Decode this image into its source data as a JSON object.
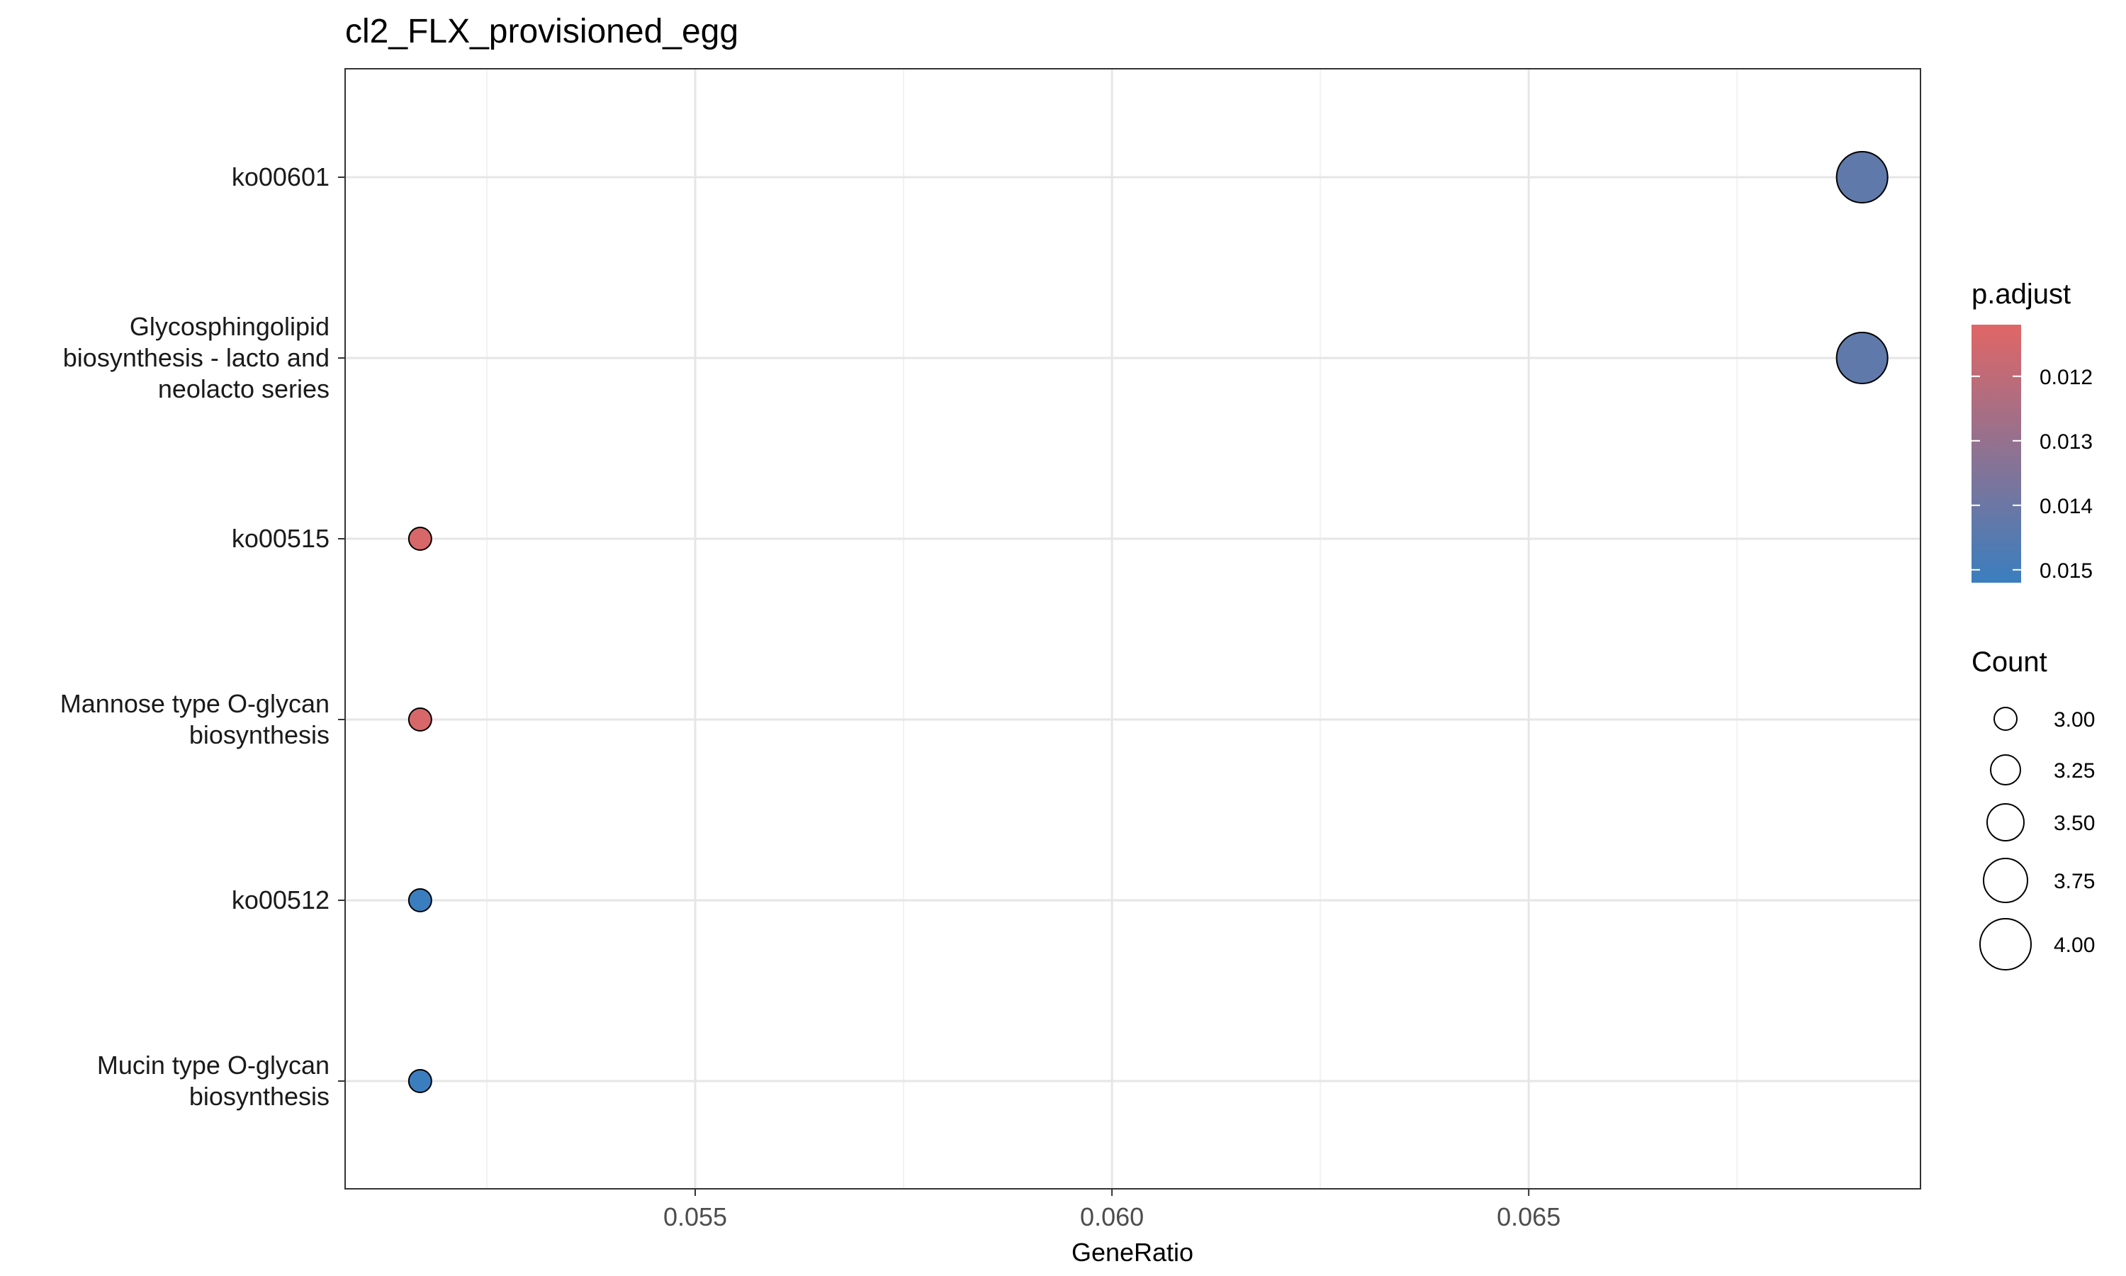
{
  "chart_data": {
    "type": "scatter",
    "title": "cl2_FLX_provisioned_egg",
    "xlabel": "GeneRatio",
    "ylabel": "",
    "xlim": [
      0.0508,
      0.0697
    ],
    "x_ticks": [
      0.055,
      0.06,
      0.065
    ],
    "x_tick_labels": [
      "0.055",
      "0.060",
      "0.065"
    ],
    "categories": [
      "ko00601",
      "Glycosphingolipid biosynthesis - lacto and neolacto series",
      "ko00515",
      "Mannose type O-glycan biosynthesis",
      "ko00512",
      "Mucin type O-glycan biosynthesis"
    ],
    "category_lines": [
      [
        "ko00601"
      ],
      [
        "Glycosphingolipid",
        "biosynthesis - lacto and",
        "neolacto series"
      ],
      [
        "ko00515"
      ],
      [
        "Mannose type O-glycan",
        "biosynthesis"
      ],
      [
        "ko00512"
      ],
      [
        "Mucin type O-glycan",
        "biosynthesis"
      ]
    ],
    "points": [
      {
        "category": "ko00601",
        "x": 0.069,
        "count": 4,
        "p_adjust": 0.0143
      },
      {
        "category": "Glycosphingolipid biosynthesis - lacto and neolacto series",
        "x": 0.069,
        "count": 4,
        "p_adjust": 0.0143
      },
      {
        "category": "ko00515",
        "x": 0.0517,
        "count": 3,
        "p_adjust": 0.0114
      },
      {
        "category": "Mannose type O-glycan biosynthesis",
        "x": 0.0517,
        "count": 3,
        "p_adjust": 0.0114
      },
      {
        "category": "ko00512",
        "x": 0.0517,
        "count": 3,
        "p_adjust": 0.0152
      },
      {
        "category": "Mucin type O-glycan biosynthesis",
        "x": 0.0517,
        "count": 3,
        "p_adjust": 0.0152
      }
    ],
    "color_legend": {
      "title": "p.adjust",
      "low_color": "#e06666",
      "high_color": "#3a7ebf",
      "range": [
        0.0112,
        0.0152
      ],
      "ticks": [
        0.012,
        0.013,
        0.014,
        0.015
      ],
      "tick_labels": [
        "0.012",
        "0.013",
        "0.014",
        "0.015"
      ]
    },
    "size_legend": {
      "title": "Count",
      "values": [
        3,
        3.25,
        3.5,
        3.75,
        4
      ],
      "labels": [
        "3.00",
        "3.25",
        "3.50",
        "3.75",
        "4.00"
      ]
    },
    "grid": true,
    "legend_position": "right"
  }
}
